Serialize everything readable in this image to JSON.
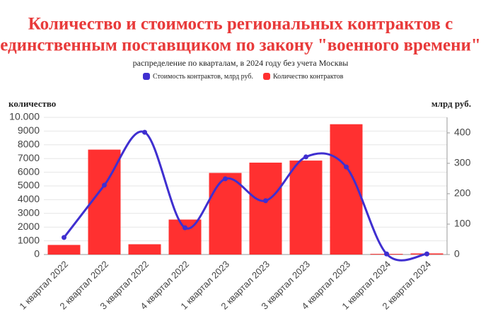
{
  "chart_data": {
    "type": "combo",
    "title": [
      "Количество и стоимость региональных контрактов с",
      "единственным поставщиком по закону \"военного времени\""
    ],
    "subtitle": "распределение по кварталам, в 2024 году без учета Москвы",
    "y_label": "количество",
    "y2_label": "млрд руб.",
    "categories": [
      "1 квартал 2022",
      "2 квартал 2022",
      "3 квартал 2022",
      "4 квартал 2022",
      "1 квартал 2023",
      "2 квартал 2023",
      "3 квартал 2023",
      "4 квартал 2023",
      "1 квартал 2024",
      "2 квартал 2024"
    ],
    "series": [
      {
        "name": "Стоимость контрактов, млрд руб.",
        "type": "line",
        "axis": "y2",
        "color": "#3f2fd0",
        "values": [
          56,
          228,
          402,
          88,
          249,
          177,
          321,
          288,
          2,
          2
        ]
      },
      {
        "name": "Количество контрактов",
        "type": "bar",
        "color": "#ff3030",
        "values": [
          700,
          7650,
          750,
          2550,
          5950,
          6700,
          6850,
          9500,
          50,
          80
        ]
      }
    ],
    "ylim": [
      0,
      10000
    ],
    "yticks": [
      0,
      1000,
      2000,
      3000,
      4000,
      5000,
      6000,
      7000,
      8000,
      9000,
      {
        "value": 10000,
        "label": "10.000"
      }
    ],
    "y2lim": [
      0,
      451
    ],
    "y2ticks": [
      0,
      100,
      200,
      300,
      400
    ],
    "grid": true
  }
}
